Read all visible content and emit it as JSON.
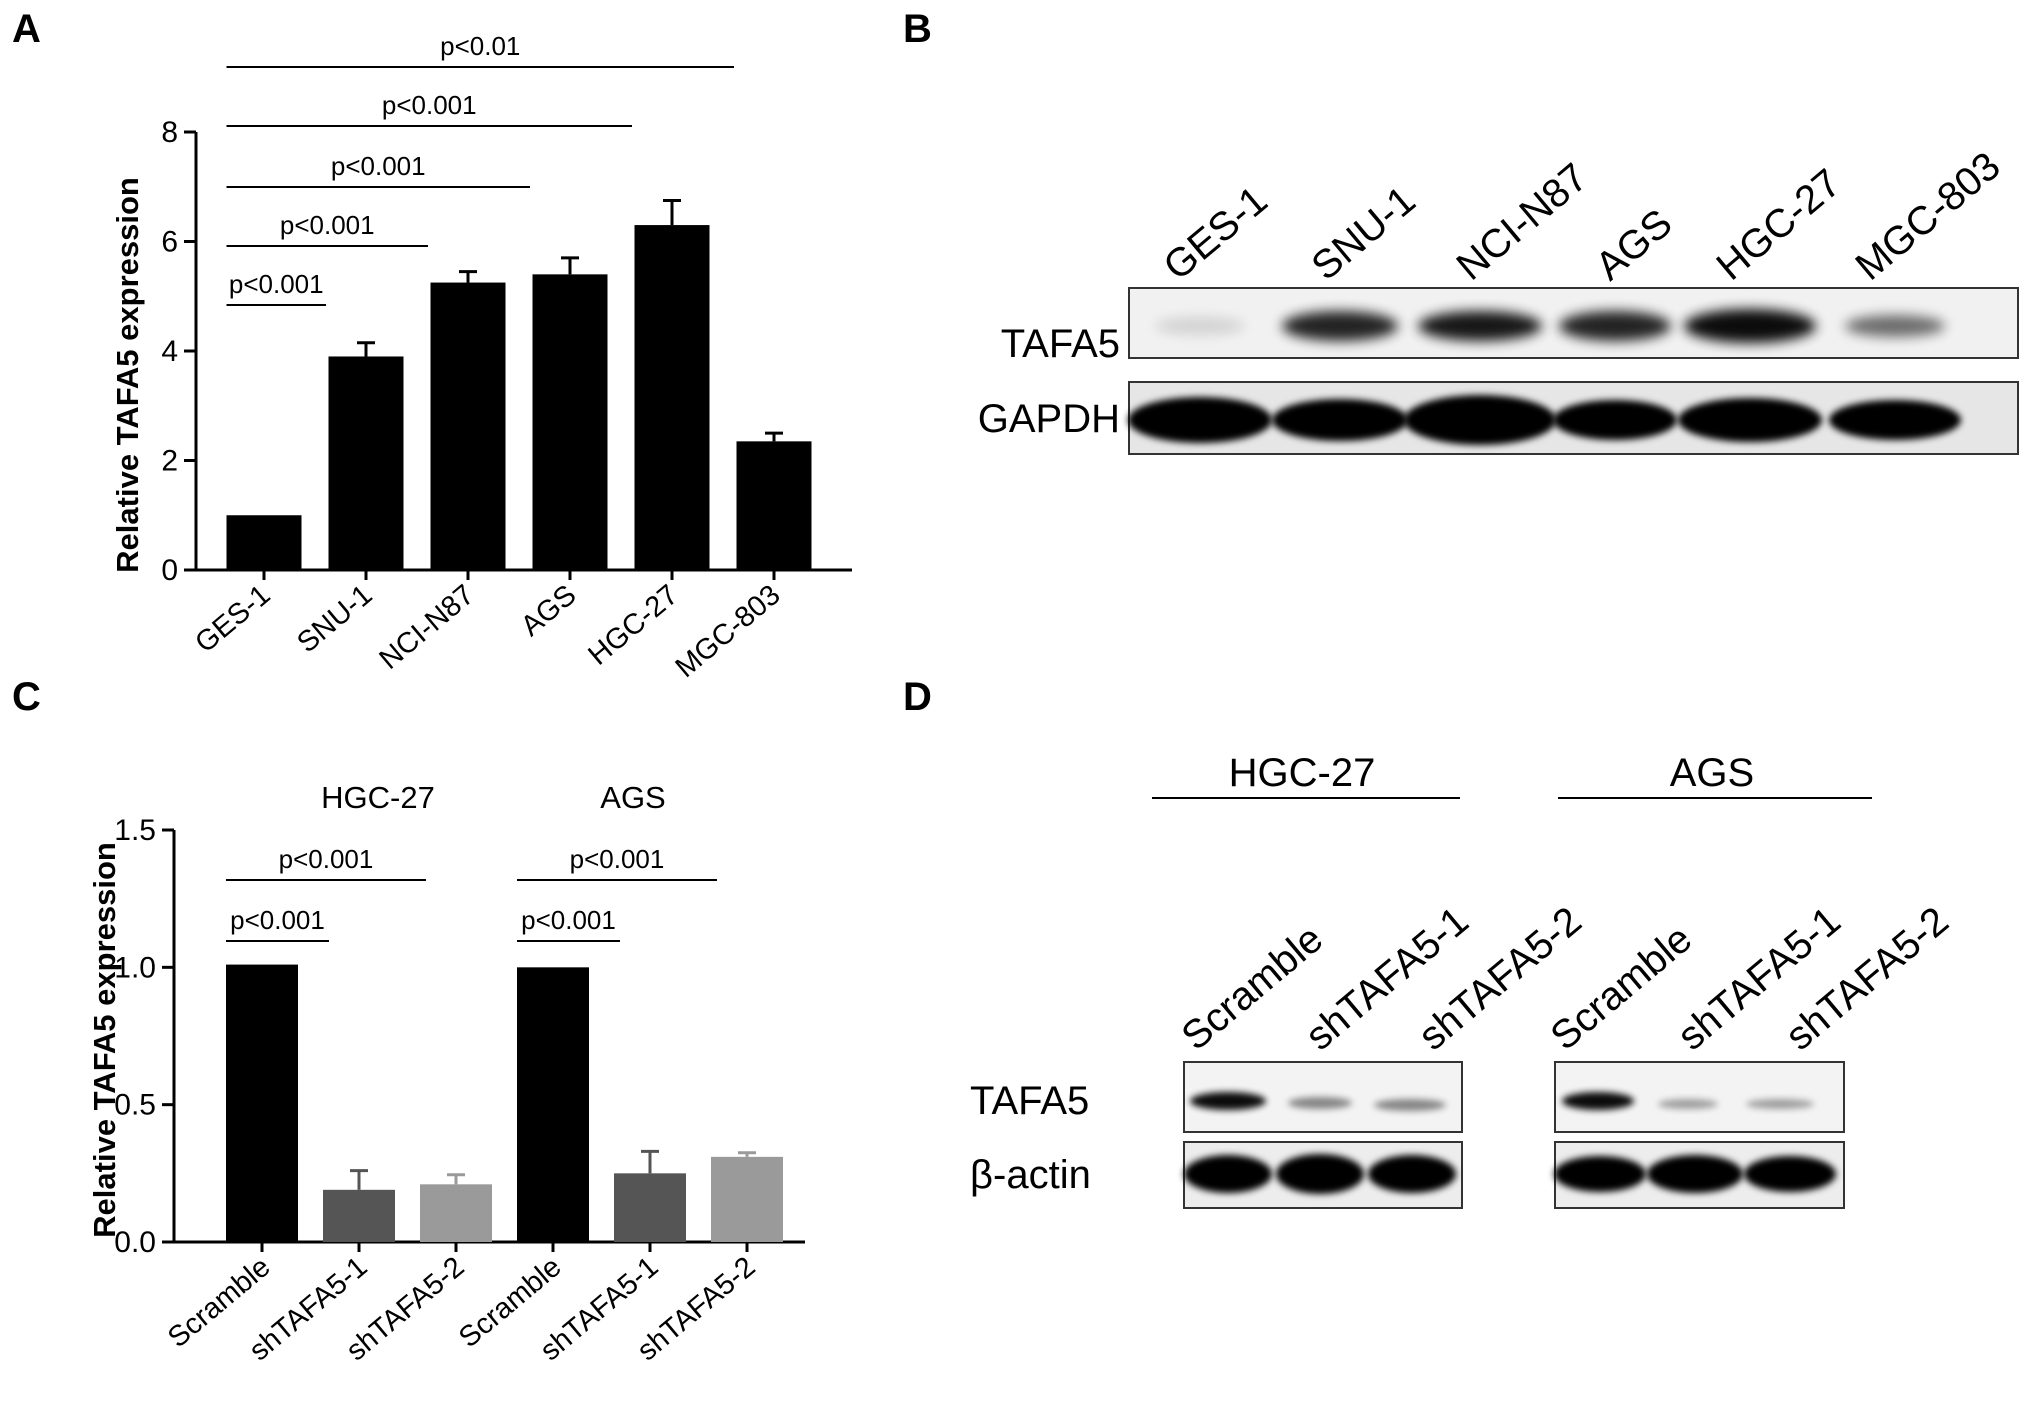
{
  "colors": {
    "black": "#000000",
    "dark_gray": "#555555",
    "light_gray": "#9a9a9a"
  },
  "panels": {
    "A": {
      "letter": "A",
      "chart_data": {
        "type": "bar",
        "categories": [
          "GES-1",
          "SNU-1",
          "NCI-N87",
          "AGS",
          "HGC-27",
          "MGC-803"
        ],
        "values": [
          1.0,
          3.9,
          5.25,
          5.4,
          6.3,
          2.35
        ],
        "errors": [
          0.0,
          0.25,
          0.2,
          0.3,
          0.45,
          0.15
        ],
        "bar_colors": [
          "#000000",
          "#000000",
          "#000000",
          "#000000",
          "#000000",
          "#000000"
        ],
        "ylabel": "Relative TAFA5 expression",
        "ylim": [
          0,
          8
        ],
        "yticks": [
          "0",
          "2",
          "4",
          "6",
          "8"
        ],
        "significance": [
          {
            "from": 0,
            "to": 1,
            "label": "p<0.001"
          },
          {
            "from": 0,
            "to": 2,
            "label": "p<0.001"
          },
          {
            "from": 0,
            "to": 3,
            "label": "p<0.001"
          },
          {
            "from": 0,
            "to": 4,
            "label": "p<0.001"
          },
          {
            "from": 0,
            "to": 5,
            "label": "p<0.01"
          }
        ]
      }
    },
    "B": {
      "letter": "B",
      "lanes": [
        "GES-1",
        "SNU-1",
        "NCI-N87",
        "AGS",
        "HGC-27",
        "MGC-803"
      ],
      "rows": [
        "TAFA5",
        "GAPDH"
      ]
    },
    "C": {
      "letter": "C",
      "group_labels": [
        "HGC-27",
        "AGS"
      ],
      "chart_data": {
        "type": "bar",
        "categories": [
          "Scramble",
          "shTAFA5-1",
          "shTAFA5-2",
          "Scramble",
          "shTAFA5-1",
          "shTAFA5-2"
        ],
        "values": [
          1.01,
          0.19,
          0.21,
          1.0,
          0.25,
          0.31
        ],
        "errors": [
          0.0,
          0.07,
          0.035,
          0.0,
          0.08,
          0.015
        ],
        "bar_colors": [
          "#000000",
          "#555555",
          "#9a9a9a",
          "#000000",
          "#555555",
          "#9a9a9a"
        ],
        "ylabel": "Relative TAFA5 expression",
        "ylim": [
          0,
          1.5
        ],
        "yticks": [
          "0.0",
          "0.5",
          "1.0",
          "1.5"
        ],
        "significance": [
          {
            "from": 0,
            "to": 1,
            "label": "p<0.001"
          },
          {
            "from": 0,
            "to": 2,
            "label": "p<0.001"
          },
          {
            "from": 3,
            "to": 4,
            "label": "p<0.001"
          },
          {
            "from": 3,
            "to": 5,
            "label": "p<0.001"
          }
        ]
      }
    },
    "D": {
      "letter": "D",
      "group_labels": [
        "HGC-27",
        "AGS"
      ],
      "lanes": [
        "Scramble",
        "shTAFA5-1",
        "shTAFA5-2",
        "Scramble",
        "shTAFA5-1",
        "shTAFA5-2"
      ],
      "rows": [
        "TAFA5",
        "β-actin"
      ]
    }
  }
}
